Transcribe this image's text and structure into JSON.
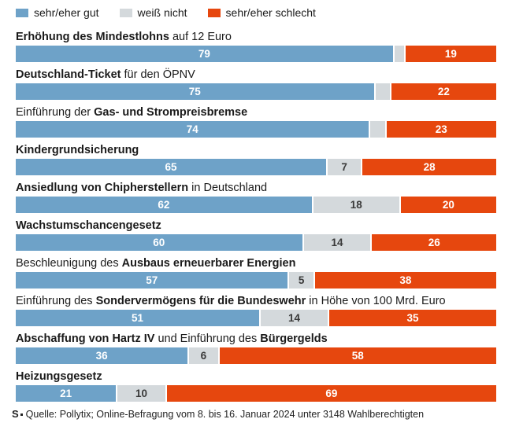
{
  "colors": {
    "gut": "#6ea2c8",
    "weiss": "#d4d9dc",
    "schlecht": "#e6470e",
    "text": "#1a1a1a",
    "seg_label_light": "#ffffff",
    "seg_label_dark": "#3a3a3a"
  },
  "legend": {
    "items": [
      {
        "key": "gut",
        "label": "sehr/eher gut"
      },
      {
        "key": "weiss",
        "label": "weiß nicht"
      },
      {
        "key": "schlecht",
        "label": "sehr/eher schlecht"
      }
    ]
  },
  "footer": {
    "source_mark": "S",
    "text": "Quelle: Pollytix; Online-Befragung vom 8. bis 16. Januar 2024 unter 3148 Wahlberechtigten"
  },
  "chart_data": {
    "type": "bar",
    "variant": "horizontal-stacked",
    "xlim": [
      0,
      100
    ],
    "grid": false,
    "legend_position": "top",
    "series_names": [
      "sehr/eher gut",
      "weiß nicht",
      "sehr/eher schlecht"
    ],
    "categories": [
      "Erhöhung des Mindestlohns auf 12 Euro",
      "Deutschland-Ticket für den ÖPNV",
      "Einführung der Gas- und Strompreisbremse",
      "Kindergrundsicherung",
      "Ansiedlung von Chipherstellern in Deutschland",
      "Wachstumschancengesetz",
      "Beschleunigung des Ausbaus erneuerbarer Energien",
      "Einführung des Sondervermögens für die Bundeswehr in Höhe von 100 Mrd. Euro",
      "Abschaffung von Hartz IV und Einführung des Bürgergelds",
      "Heizungsgesetz"
    ],
    "rows": [
      {
        "label_parts": [
          {
            "text": "Erhöhung des Mindestlohns",
            "bold": true
          },
          {
            "text": " auf 12 Euro",
            "bold": false
          }
        ],
        "values": {
          "gut": 79,
          "weiss": 2,
          "schlecht": 19
        },
        "labels": {
          "gut": "79",
          "weiss": "",
          "schlecht": "19"
        }
      },
      {
        "label_parts": [
          {
            "text": "Deutschland-Ticket",
            "bold": true
          },
          {
            "text": " für den ÖPNV",
            "bold": false
          }
        ],
        "values": {
          "gut": 75,
          "weiss": 3,
          "schlecht": 22
        },
        "labels": {
          "gut": "75",
          "weiss": "",
          "schlecht": "22"
        }
      },
      {
        "label_parts": [
          {
            "text": "Einführung der ",
            "bold": false
          },
          {
            "text": "Gas- und Strompreisbremse",
            "bold": true
          }
        ],
        "values": {
          "gut": 74,
          "weiss": 3,
          "schlecht": 23
        },
        "labels": {
          "gut": "74",
          "weiss": "",
          "schlecht": "23"
        }
      },
      {
        "label_parts": [
          {
            "text": "Kindergrundsicherung",
            "bold": true
          }
        ],
        "values": {
          "gut": 65,
          "weiss": 7,
          "schlecht": 28
        },
        "labels": {
          "gut": "65",
          "weiss": "7",
          "schlecht": "28"
        }
      },
      {
        "label_parts": [
          {
            "text": "Ansiedlung von Chipherstellern",
            "bold": true
          },
          {
            "text": " in Deutschland",
            "bold": false
          }
        ],
        "values": {
          "gut": 62,
          "weiss": 18,
          "schlecht": 20
        },
        "labels": {
          "gut": "62",
          "weiss": "18",
          "schlecht": "20"
        }
      },
      {
        "label_parts": [
          {
            "text": "Wachstumschancengesetz",
            "bold": true
          }
        ],
        "values": {
          "gut": 60,
          "weiss": 14,
          "schlecht": 26
        },
        "labels": {
          "gut": "60",
          "weiss": "14",
          "schlecht": "26"
        }
      },
      {
        "label_parts": [
          {
            "text": "Beschleunigung des ",
            "bold": false
          },
          {
            "text": "Ausbaus erneuerbarer Energien",
            "bold": true
          }
        ],
        "values": {
          "gut": 57,
          "weiss": 5,
          "schlecht": 38
        },
        "labels": {
          "gut": "57",
          "weiss": "5",
          "schlecht": "38"
        }
      },
      {
        "label_parts": [
          {
            "text": "Einführung des ",
            "bold": false
          },
          {
            "text": "Sondervermögens für die Bundeswehr",
            "bold": true
          },
          {
            "text": " in Höhe von 100 Mrd. Euro",
            "bold": false
          }
        ],
        "values": {
          "gut": 51,
          "weiss": 14,
          "schlecht": 35
        },
        "labels": {
          "gut": "51",
          "weiss": "14",
          "schlecht": "35"
        }
      },
      {
        "label_parts": [
          {
            "text": "Abschaffung von Hartz IV",
            "bold": true
          },
          {
            "text": " und Einführung des ",
            "bold": false
          },
          {
            "text": "Bürgergelds",
            "bold": true
          }
        ],
        "values": {
          "gut": 36,
          "weiss": 6,
          "schlecht": 58
        },
        "labels": {
          "gut": "36",
          "weiss": "6",
          "schlecht": "58"
        }
      },
      {
        "label_parts": [
          {
            "text": "Heizungsgesetz",
            "bold": true
          }
        ],
        "values": {
          "gut": 21,
          "weiss": 10,
          "schlecht": 69
        },
        "labels": {
          "gut": "21",
          "weiss": "10",
          "schlecht": "69"
        }
      }
    ]
  }
}
